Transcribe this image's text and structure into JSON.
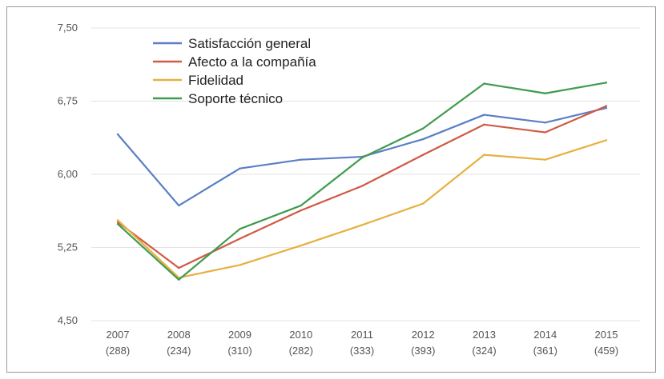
{
  "chart_data": {
    "type": "line",
    "title": "",
    "xlabel": "",
    "ylabel": "",
    "ylim": [
      4.5,
      7.5
    ],
    "yticks": [
      "7,50",
      "6,75",
      "6,00",
      "5,25",
      "4,50"
    ],
    "ytick_values": [
      7.5,
      6.75,
      6.0,
      5.25,
      4.5
    ],
    "categories": [
      {
        "year": "2007",
        "n": "(288)"
      },
      {
        "year": "2008",
        "n": "(234)"
      },
      {
        "year": "2009",
        "n": "(310)"
      },
      {
        "year": "2010",
        "n": "(282)"
      },
      {
        "year": "2011",
        "n": "(333)"
      },
      {
        "year": "2012",
        "n": "(393)"
      },
      {
        "year": "2013",
        "n": "(324)"
      },
      {
        "year": "2014",
        "n": "(361)"
      },
      {
        "year": "2015",
        "n": "(459)"
      }
    ],
    "grid": true,
    "legend_position": "top-left",
    "series": [
      {
        "name": "Satisfacción general",
        "color": "#5b7fc6",
        "values": [
          6.41,
          5.68,
          6.06,
          6.15,
          6.18,
          6.36,
          6.61,
          6.53,
          6.68
        ]
      },
      {
        "name": "Afecto a la compañía",
        "color": "#d05a45",
        "values": [
          5.51,
          5.04,
          5.34,
          5.63,
          5.88,
          6.2,
          6.51,
          6.43,
          6.7
        ]
      },
      {
        "name": "Fidelidad",
        "color": "#e7b042",
        "values": [
          5.53,
          4.94,
          5.07,
          5.27,
          5.48,
          5.7,
          6.2,
          6.15,
          6.35
        ]
      },
      {
        "name": "Soporte técnico",
        "color": "#3f9c4f",
        "values": [
          5.49,
          4.92,
          5.44,
          5.68,
          6.17,
          6.47,
          6.93,
          6.83,
          6.94
        ]
      }
    ]
  }
}
